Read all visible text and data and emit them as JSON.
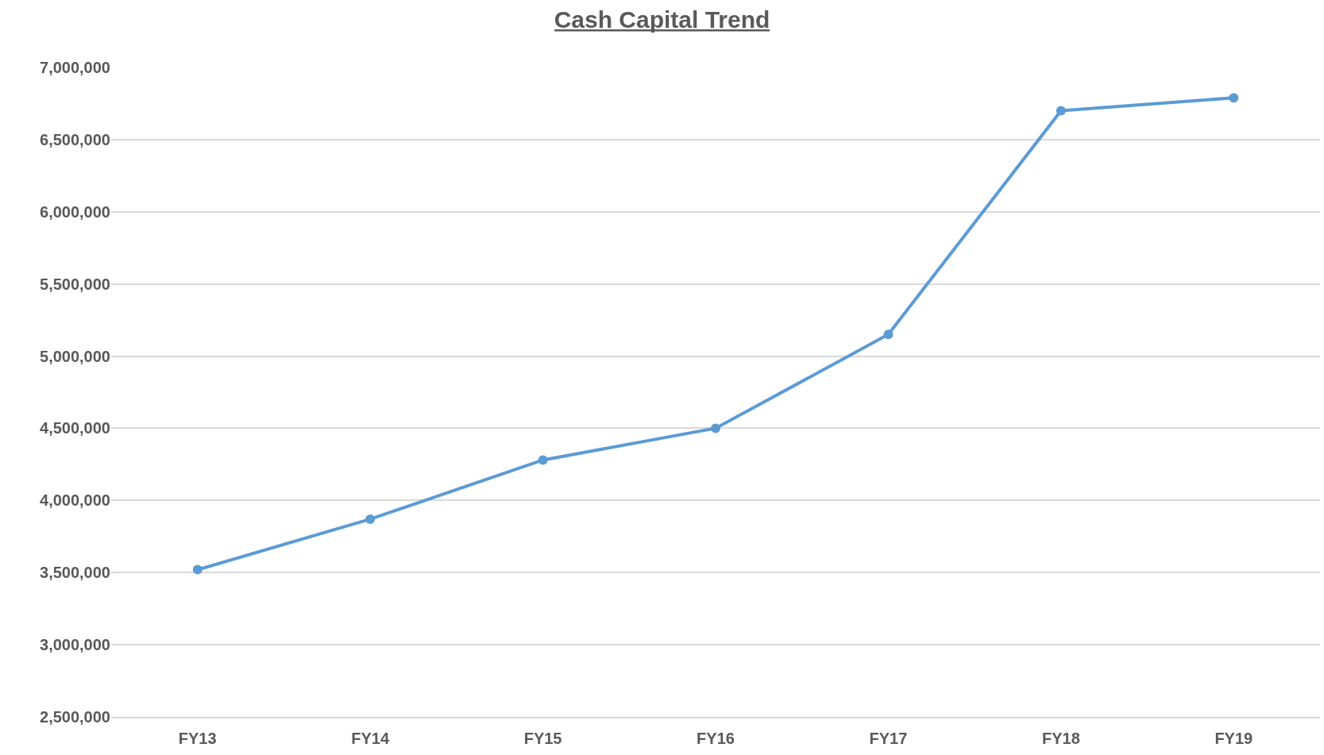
{
  "chart_data": {
    "type": "line",
    "title": "Cash Capital Trend",
    "categories": [
      "FY13",
      "FY14",
      "FY15",
      "FY16",
      "FY17",
      "FY18",
      "FY19"
    ],
    "series": [
      {
        "color": "#5b9bd5",
        "values": [
          3520000,
          3870000,
          4280000,
          4500000,
          5150000,
          6700000,
          6790000
        ]
      }
    ],
    "ylim": [
      2500000,
      7000000
    ],
    "yticks": [
      {
        "value": 2500000,
        "label": "2,500,000"
      },
      {
        "value": 3000000,
        "label": "3,000,000"
      },
      {
        "value": 3500000,
        "label": "3,500,000"
      },
      {
        "value": 4000000,
        "label": "4,000,000"
      },
      {
        "value": 4500000,
        "label": "4,500,000"
      },
      {
        "value": 5000000,
        "label": "5,000,000"
      },
      {
        "value": 5500000,
        "label": "5,500,000"
      },
      {
        "value": 6000000,
        "label": "6,000,000"
      },
      {
        "value": 6500000,
        "label": "6,500,000"
      },
      {
        "value": 7000000,
        "label": "7,000,000"
      }
    ],
    "grid": "y",
    "marker": "circle",
    "line_style": "solid"
  }
}
